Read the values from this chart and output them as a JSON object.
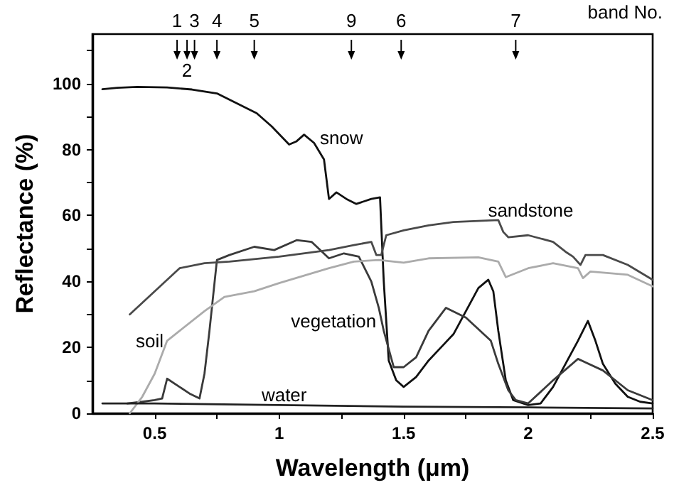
{
  "chart_data": {
    "type": "line",
    "xlabel": "Wavelength (μm)",
    "ylabel": "Reflectance (%)",
    "xlim": [
      0.25,
      2.5
    ],
    "ylim": [
      0,
      115
    ],
    "xticks": [
      0.5,
      {
        "value": 0.75,
        "label": null
      },
      1.0,
      {
        "value": 1.25,
        "label": null
      },
      1.5,
      {
        "value": 1.75,
        "label": null
      },
      2.0,
      {
        "value": 2.25,
        "label": null
      },
      2.5
    ],
    "yticks": [
      0,
      {
        "value": 10,
        "label": null
      },
      20,
      {
        "value": 30,
        "label": null
      },
      40,
      {
        "value": 50,
        "label": null
      },
      60,
      {
        "value": 70,
        "label": null
      },
      80,
      {
        "value": 90,
        "label": null
      },
      100,
      {
        "value": 110,
        "label": null
      }
    ],
    "grid": false,
    "legend": false,
    "marker": "none",
    "line_style": "solid",
    "series": [
      {
        "name": "snow",
        "color": "#111111",
        "x": [
          0.29,
          0.35,
          0.43,
          0.55,
          0.65,
          0.75,
          0.83,
          0.91,
          0.97,
          1.04,
          1.07,
          1.1,
          1.14,
          1.18,
          1.2,
          1.23,
          1.27,
          1.31,
          1.37,
          1.405,
          1.42,
          1.44,
          1.47,
          1.5,
          1.55,
          1.6,
          1.65,
          1.7,
          1.75,
          1.8,
          1.84,
          1.86,
          1.88,
          1.91,
          1.94,
          2.0,
          2.05,
          2.1,
          2.15,
          2.2,
          2.24,
          2.27,
          2.3,
          2.35,
          2.4,
          2.45,
          2.5
        ],
        "values": [
          98.3,
          98.7,
          99,
          98.8,
          98.2,
          97,
          94,
          91,
          87,
          81.5,
          82.5,
          84.5,
          82,
          77,
          65,
          67,
          65,
          63.5,
          65,
          65.5,
          40,
          16,
          10,
          8,
          11,
          16,
          20,
          24,
          31,
          38,
          40.5,
          37,
          25,
          10,
          4,
          2.5,
          3,
          8,
          15,
          22,
          28,
          22,
          15,
          9,
          5,
          3.5,
          3
        ]
      },
      {
        "name": "vegetation",
        "color": "#3a3a3a",
        "x": [
          0.39,
          0.45,
          0.5,
          0.53,
          0.55,
          0.6,
          0.64,
          0.68,
          0.7,
          0.72,
          0.75,
          0.8,
          0.9,
          0.98,
          1.07,
          1.13,
          1.2,
          1.26,
          1.32,
          1.37,
          1.4,
          1.42,
          1.46,
          1.5,
          1.55,
          1.6,
          1.67,
          1.75,
          1.85,
          1.88,
          1.92,
          1.95,
          2.0,
          2.1,
          2.2,
          2.3,
          2.4,
          2.5
        ],
        "values": [
          3,
          3.5,
          4,
          4.5,
          10.5,
          8,
          6,
          4.5,
          12,
          25,
          46.5,
          48,
          50.5,
          49.5,
          52.5,
          52,
          47,
          48.5,
          47.5,
          40,
          32,
          25,
          14,
          14,
          17,
          25,
          32,
          29,
          22,
          15,
          7,
          4,
          3,
          10,
          16.5,
          13,
          7,
          4
        ]
      },
      {
        "name": "sandstone",
        "color": "#4a4a4a",
        "x": [
          0.4,
          0.5,
          0.6,
          0.7,
          0.8,
          1.0,
          1.2,
          1.3,
          1.37,
          1.39,
          1.41,
          1.43,
          1.5,
          1.6,
          1.7,
          1.88,
          1.9,
          1.92,
          2.0,
          2.1,
          2.15,
          2.18,
          2.21,
          2.23,
          2.3,
          2.4,
          2.5
        ],
        "values": [
          30,
          37,
          44,
          45.5,
          46,
          47.5,
          49.5,
          51,
          52,
          48,
          48,
          54,
          55.5,
          57,
          58,
          58.6,
          55,
          53.4,
          54,
          52,
          49,
          47.5,
          45,
          48,
          48,
          45,
          40.5
        ]
      },
      {
        "name": "soil",
        "color": "#ababab",
        "x": [
          0.4,
          0.45,
          0.5,
          0.55,
          0.6,
          0.7,
          0.78,
          0.9,
          1.0,
          1.2,
          1.3,
          1.4,
          1.5,
          1.6,
          1.8,
          1.88,
          1.91,
          2.0,
          2.1,
          2.2,
          2.22,
          2.25,
          2.4,
          2.5
        ],
        "values": [
          0,
          5,
          12,
          22,
          25,
          31,
          35.3,
          37,
          39.5,
          44,
          46,
          46.5,
          45.7,
          47,
          47.3,
          46,
          41.3,
          44,
          45.5,
          44,
          41,
          43,
          42,
          38.5
        ]
      },
      {
        "name": "water",
        "color": "#222222",
        "x": [
          0.29,
          0.5,
          1.0,
          1.5,
          2.0,
          2.5
        ],
        "values": [
          3,
          3,
          2.5,
          2,
          1.8,
          1.5
        ]
      }
    ],
    "annotations": [
      {
        "text": "1",
        "x": 0.59
      },
      {
        "text": "2",
        "x": 0.63
      },
      {
        "text": "3",
        "x": 0.66
      },
      {
        "text": "4",
        "x": 0.75
      },
      {
        "text": "5",
        "x": 0.9
      },
      {
        "text": "9",
        "x": 1.29
      },
      {
        "text": "6",
        "x": 1.49
      },
      {
        "text": "7",
        "x": 1.95
      },
      "band No."
    ]
  }
}
